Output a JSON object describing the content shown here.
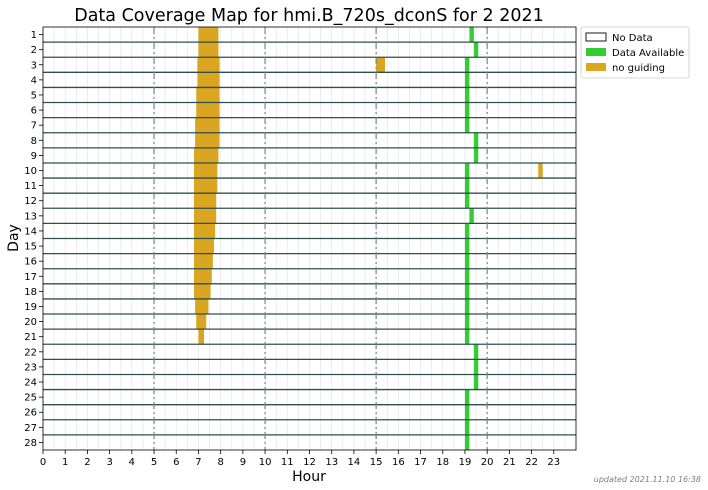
{
  "chart_data": {
    "type": "bar",
    "title": "Data Coverage Map for hmi.B_720s_dconS for 2 2021",
    "xlabel": "Hour",
    "ylabel": "Day",
    "xlim": [
      0,
      24
    ],
    "x_ticks": [
      "0",
      "1",
      "2",
      "3",
      "4",
      "5",
      "6",
      "7",
      "8",
      "9",
      "10",
      "11",
      "12",
      "13",
      "14",
      "15",
      "16",
      "17",
      "18",
      "19",
      "20",
      "21",
      "22",
      "23"
    ],
    "days": [
      "1",
      "2",
      "3",
      "4",
      "5",
      "6",
      "7",
      "8",
      "9",
      "10",
      "11",
      "12",
      "13",
      "14",
      "15",
      "16",
      "17",
      "18",
      "19",
      "20",
      "21",
      "22",
      "23",
      "24",
      "25",
      "26",
      "27",
      "28"
    ],
    "major_vlines": [
      5,
      10,
      15,
      20
    ],
    "grid": true,
    "legend_position": "outside-right-top",
    "legend": [
      {
        "label": "No Data",
        "key": "nodata"
      },
      {
        "label": "Data Available",
        "key": "available"
      },
      {
        "label": "no guiding",
        "key": "noguiding"
      }
    ],
    "colors": {
      "available": "#33cc33",
      "noguiding": "#daa520",
      "nodata": "#ffffff",
      "row_separator": "#2f4f4f",
      "major_vline": "#6b8e7e"
    },
    "segments": {
      "available": [
        [
          1,
          19.2,
          19.4
        ],
        [
          2,
          19.4,
          19.6
        ],
        [
          3,
          19.0,
          19.2
        ],
        [
          4,
          19.0,
          19.2
        ],
        [
          5,
          19.0,
          19.2
        ],
        [
          6,
          19.0,
          19.2
        ],
        [
          7,
          19.0,
          19.2
        ],
        [
          8,
          19.4,
          19.6
        ],
        [
          9,
          19.4,
          19.6
        ],
        [
          10,
          19.0,
          19.2
        ],
        [
          11,
          19.0,
          19.2
        ],
        [
          12,
          19.0,
          19.2
        ],
        [
          13,
          19.2,
          19.4
        ],
        [
          14,
          19.0,
          19.2
        ],
        [
          15,
          19.0,
          19.2
        ],
        [
          16,
          19.0,
          19.2
        ],
        [
          17,
          19.0,
          19.2
        ],
        [
          18,
          19.0,
          19.2
        ],
        [
          19,
          19.0,
          19.2
        ],
        [
          20,
          19.0,
          19.2
        ],
        [
          21,
          19.0,
          19.2
        ],
        [
          22,
          19.4,
          19.6
        ],
        [
          23,
          19.4,
          19.6
        ],
        [
          24,
          19.4,
          19.6
        ],
        [
          25,
          19.0,
          19.2
        ],
        [
          26,
          19.0,
          19.2
        ],
        [
          27,
          19.0,
          19.2
        ],
        [
          28,
          19.0,
          19.2
        ]
      ],
      "noguiding": [
        [
          1,
          7.0,
          7.9
        ],
        [
          2,
          7.0,
          7.9
        ],
        [
          3,
          6.95,
          7.95
        ],
        [
          3,
          15.0,
          15.4
        ],
        [
          4,
          6.95,
          7.95
        ],
        [
          5,
          6.9,
          7.95
        ],
        [
          6,
          6.9,
          7.95
        ],
        [
          7,
          6.85,
          7.95
        ],
        [
          8,
          6.85,
          7.95
        ],
        [
          9,
          6.8,
          7.9
        ],
        [
          10,
          6.8,
          7.85
        ],
        [
          10,
          22.3,
          22.5
        ],
        [
          11,
          6.8,
          7.85
        ],
        [
          12,
          6.8,
          7.8
        ],
        [
          13,
          6.8,
          7.8
        ],
        [
          14,
          6.8,
          7.75
        ],
        [
          15,
          6.8,
          7.7
        ],
        [
          16,
          6.8,
          7.65
        ],
        [
          17,
          6.8,
          7.6
        ],
        [
          18,
          6.8,
          7.55
        ],
        [
          19,
          6.85,
          7.45
        ],
        [
          20,
          6.9,
          7.35
        ],
        [
          21,
          7.0,
          7.25
        ]
      ]
    }
  },
  "footer": {
    "updated_text": "updated 2021.11.10 16:38"
  }
}
